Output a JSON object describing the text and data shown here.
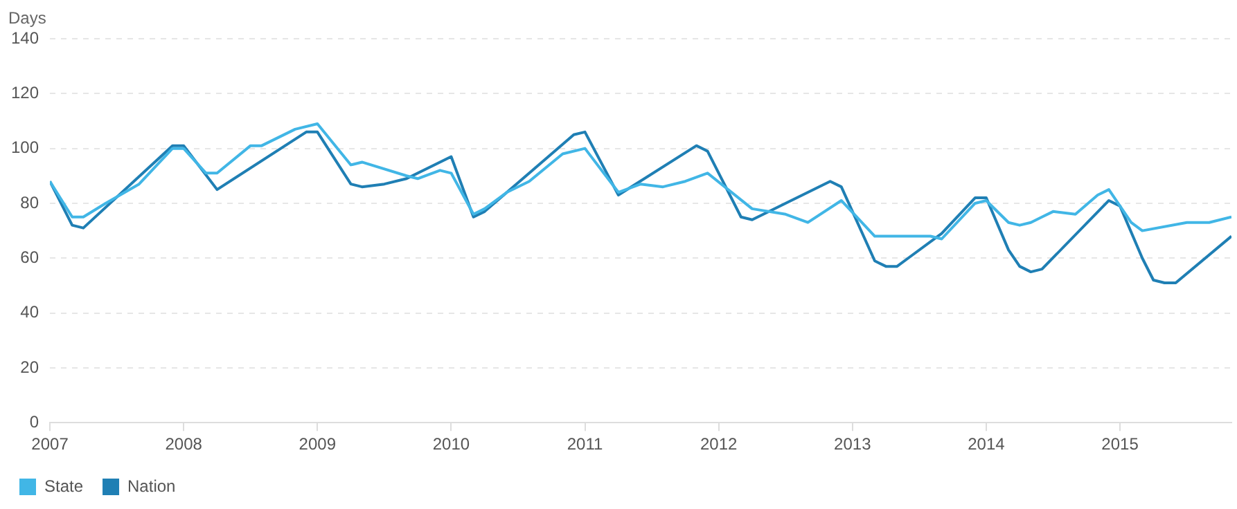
{
  "chart_data": {
    "type": "line",
    "ylabel": "Days",
    "xlim": [
      "2007-01",
      "2015-11"
    ],
    "xticks": [
      "2007",
      "2008",
      "2009",
      "2010",
      "2011",
      "2012",
      "2013",
      "2014",
      "2015"
    ],
    "ylim": [
      0,
      140
    ],
    "yticks": [
      0,
      20,
      40,
      60,
      80,
      100,
      120,
      140
    ],
    "grid": "y",
    "legend": "bottom left",
    "marker": "none",
    "line_style": "solid",
    "series": [
      {
        "name": "State",
        "color": "#41b6e6",
        "x": [
          "2007-01",
          "2007-03",
          "2007-04",
          "2007-06",
          "2007-09",
          "2007-12",
          "2008-01",
          "2008-03",
          "2008-04",
          "2008-07",
          "2008-08",
          "2008-11",
          "2009-01",
          "2009-04",
          "2009-05",
          "2009-09",
          "2009-10",
          "2009-12",
          "2010-01",
          "2010-03",
          "2010-04",
          "2010-06",
          "2010-08",
          "2010-11",
          "2011-01",
          "2011-04",
          "2011-06",
          "2011-08",
          "2011-10",
          "2011-12",
          "2012-04",
          "2012-07",
          "2012-09",
          "2012-12",
          "2013-03",
          "2013-04",
          "2013-08",
          "2013-09",
          "2013-12",
          "2014-01",
          "2014-03",
          "2014-04",
          "2014-05",
          "2014-06",
          "2014-07",
          "2014-09",
          "2014-11",
          "2014-12",
          "2015-02",
          "2015-03",
          "2015-07",
          "2015-09",
          "2015-11"
        ],
        "values": [
          88,
          75,
          75,
          80,
          87,
          100,
          100,
          91,
          91,
          101,
          101,
          107,
          109,
          94,
          95,
          90,
          89,
          92,
          91,
          76,
          78,
          84,
          88,
          98,
          100,
          84,
          87,
          86,
          88,
          91,
          78,
          76,
          73,
          81,
          68,
          68,
          68,
          67,
          80,
          81,
          73,
          72,
          73,
          75,
          77,
          76,
          83,
          85,
          73,
          70,
          73,
          73,
          75
        ]
      },
      {
        "name": "Nation",
        "color": "#1f7fb4",
        "x": [
          "2007-01",
          "2007-03",
          "2007-04",
          "2007-12",
          "2008-01",
          "2008-04",
          "2008-12",
          "2009-01",
          "2009-04",
          "2009-05",
          "2009-07",
          "2009-09",
          "2010-01",
          "2010-03",
          "2010-04",
          "2010-12",
          "2011-01",
          "2011-04",
          "2011-11",
          "2011-12",
          "2012-03",
          "2012-04",
          "2012-11",
          "2012-12",
          "2013-03",
          "2013-04",
          "2013-05",
          "2013-06",
          "2013-09",
          "2013-12",
          "2014-01",
          "2014-03",
          "2014-04",
          "2014-05",
          "2014-06",
          "2014-12",
          "2015-01",
          "2015-03",
          "2015-04",
          "2015-05",
          "2015-06",
          "2015-11"
        ],
        "values": [
          88,
          72,
          71,
          101,
          101,
          85,
          106,
          106,
          87,
          86,
          87,
          89,
          97,
          75,
          77,
          105,
          106,
          83,
          101,
          99,
          75,
          74,
          88,
          86,
          59,
          57,
          57,
          60,
          69,
          82,
          82,
          63,
          57,
          55,
          56,
          81,
          79,
          60,
          52,
          51,
          51,
          68
        ]
      }
    ]
  }
}
